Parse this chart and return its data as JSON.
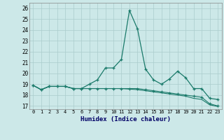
{
  "xlabel": "Humidex (Indice chaleur)",
  "xlim": [
    -0.5,
    23.5
  ],
  "ylim": [
    16.7,
    26.5
  ],
  "yticks": [
    17,
    18,
    19,
    20,
    21,
    22,
    23,
    24,
    25,
    26
  ],
  "xticks": [
    0,
    1,
    2,
    3,
    4,
    5,
    6,
    7,
    8,
    9,
    10,
    11,
    12,
    13,
    14,
    15,
    16,
    17,
    18,
    19,
    20,
    21,
    22,
    23
  ],
  "background_color": "#cce8e8",
  "grid_color": "#aacccc",
  "line_color": "#1a7a6a",
  "line1": [
    18.9,
    18.5,
    18.8,
    18.8,
    18.8,
    18.6,
    18.6,
    19.0,
    19.4,
    20.5,
    20.5,
    21.3,
    25.8,
    24.1,
    20.4,
    19.4,
    19.0,
    19.5,
    20.2,
    19.6,
    18.6,
    18.6,
    17.7,
    17.6
  ],
  "line2": [
    18.9,
    18.5,
    18.8,
    18.8,
    18.8,
    18.6,
    18.6,
    18.6,
    18.6,
    18.6,
    18.6,
    18.6,
    18.6,
    18.6,
    18.5,
    18.4,
    18.3,
    18.2,
    18.1,
    18.0,
    17.9,
    17.8,
    17.2,
    17.0
  ],
  "line3": [
    18.9,
    18.5,
    18.8,
    18.8,
    18.8,
    18.6,
    18.6,
    18.6,
    18.6,
    18.6,
    18.6,
    18.6,
    18.55,
    18.5,
    18.4,
    18.3,
    18.2,
    18.1,
    18.0,
    17.9,
    17.7,
    17.6,
    17.1,
    16.95
  ]
}
